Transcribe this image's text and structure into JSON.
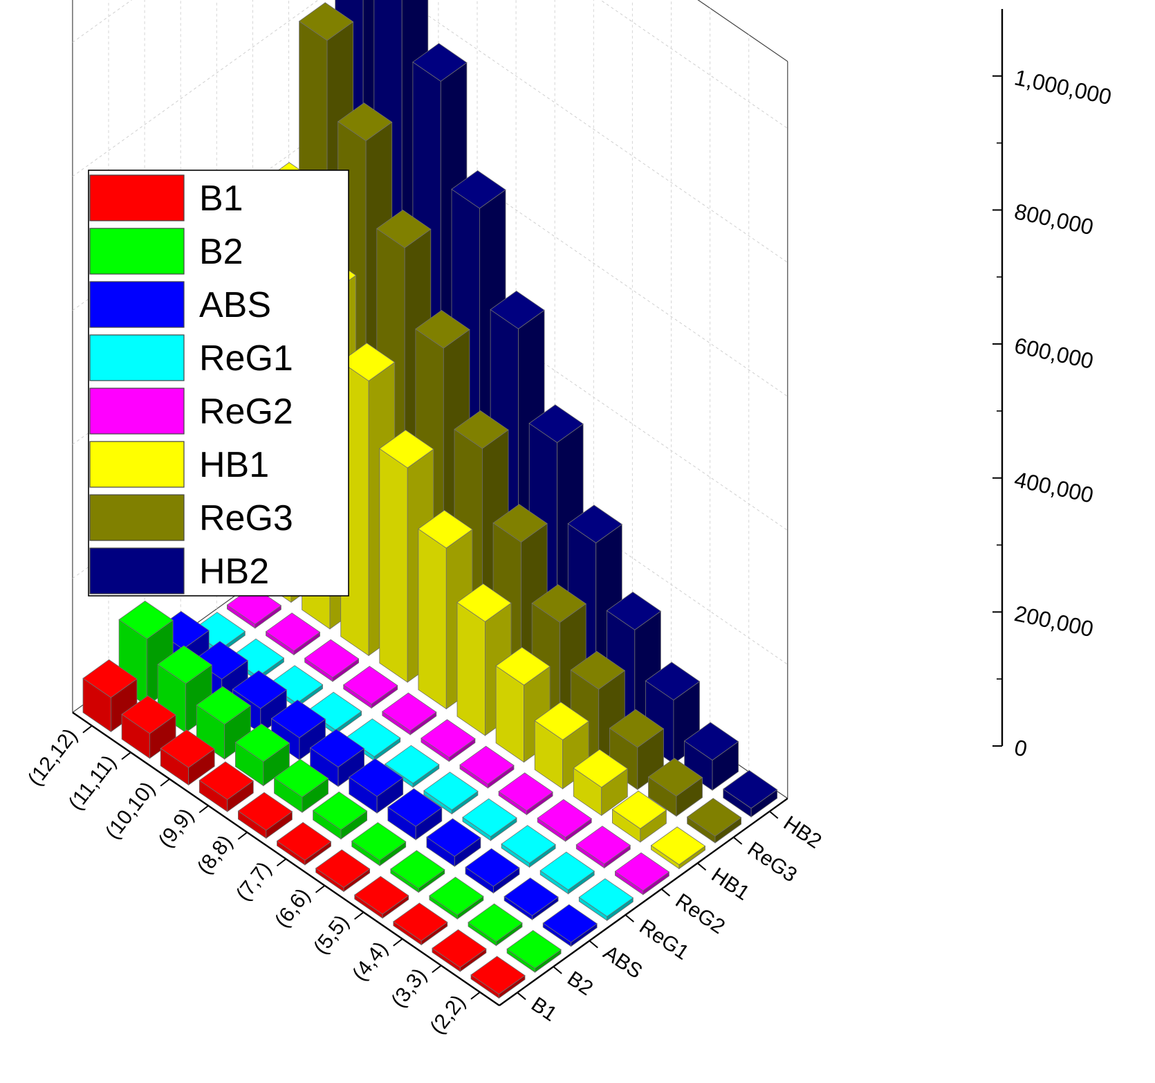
{
  "chart_data": {
    "type": "bar3d",
    "categories": [
      "(2,2)",
      "(3,3)",
      "(4,4)",
      "(5,5)",
      "(6,6)",
      "(7,7)",
      "(8,8)",
      "(9,9)",
      "(10,10)",
      "(11,11)",
      "(12,12)"
    ],
    "series": [
      {
        "name": "B1",
        "color": "#ff0000",
        "values": [
          100,
          400,
          1000,
          2000,
          4000,
          7000,
          12000,
          18000,
          26000,
          37000,
          51000
        ]
      },
      {
        "name": "B2",
        "color": "#00ff00",
        "values": [
          200,
          800,
          2000,
          4000,
          8000,
          14000,
          23000,
          36000,
          52000,
          73000,
          100000
        ]
      },
      {
        "name": "ABS",
        "color": "#0000ff",
        "values": [
          2000,
          5000,
          10000,
          15000,
          20000,
          25000,
          29000,
          33000,
          37000,
          41000,
          46000
        ]
      },
      {
        "name": "ReG1",
        "color": "#00ffff",
        "values": [
          0,
          0,
          0,
          0,
          0,
          0,
          0,
          0,
          0,
          0,
          0
        ]
      },
      {
        "name": "ReG2",
        "color": "#ff00ff",
        "values": [
          0,
          0,
          0,
          0,
          0,
          0,
          0,
          0,
          0,
          0,
          0
        ]
      },
      {
        "name": "HB1",
        "color": "#ffff00",
        "values": [
          6000,
          20000,
          42000,
          73000,
          115000,
          170000,
          240000,
          320000,
          410000,
          500000,
          600000
        ]
      },
      {
        "name": "ReG3",
        "color": "#808000",
        "values": [
          10000,
          30000,
          63000,
          110000,
          170000,
          250000,
          350000,
          460000,
          570000,
          690000,
          800000
        ]
      },
      {
        "name": "HB2",
        "color": "#000080",
        "values": [
          13000,
          45000,
          95000,
          160000,
          250000,
          360000,
          490000,
          630000,
          780000,
          950000,
          1100000
        ]
      }
    ],
    "z_ticks": [
      "0",
      "200,000",
      "400,000",
      "600,000",
      "800,000",
      "1,000,000"
    ],
    "z_tick_values": [
      0,
      200000,
      400000,
      600000,
      800000,
      1000000
    ],
    "zlim": [
      0,
      1100000
    ],
    "grid": true,
    "legend_placement": "top-left"
  }
}
